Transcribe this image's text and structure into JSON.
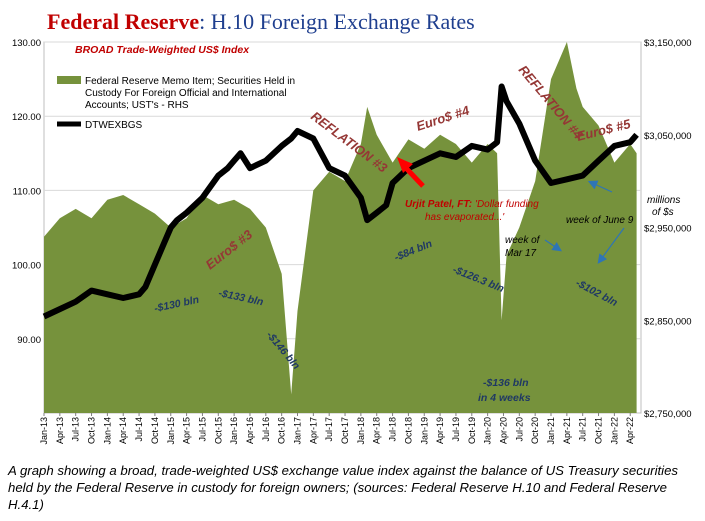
{
  "header": {
    "title_bold": "Federal Reserve",
    "title_rest": ": H.10 Foreign Exchange Rates",
    "title_color": "#c00000",
    "title_rest_color": "#1f3f8f"
  },
  "chart_data": {
    "type": "area",
    "subtitle": "BROAD Trade-Weighted US$ Index",
    "left_axis": {
      "ticks": [
        "130.00",
        "120.00",
        "110.00",
        "100.00",
        "90.00"
      ],
      "range": [
        80,
        130
      ]
    },
    "right_axis": {
      "unit_line1": "millions",
      "unit_line2": "of $s",
      "ticks": [
        "$3,150,000",
        "$3,050,000",
        "$2,950,000",
        "$2,850,000",
        "$2,750,000"
      ],
      "range": [
        2750000,
        3150000
      ]
    },
    "x_labels": [
      "Jan-13",
      "Apr-13",
      "Jul-13",
      "Oct-13",
      "Jan-14",
      "Apr-14",
      "Jul-14",
      "Oct-14",
      "Jan-15",
      "Apr-15",
      "Jul-15",
      "Oct-15",
      "Jan-16",
      "Apr-16",
      "Jul-16",
      "Oct-16",
      "Jan-17",
      "Apr-17",
      "Jul-17",
      "Oct-17",
      "Jan-18",
      "Apr-18",
      "Jul-18",
      "Oct-18",
      "Jan-19",
      "Apr-19",
      "Jul-19",
      "Oct-19",
      "Jan-20",
      "Apr-20",
      "Jul-20",
      "Oct-20",
      "Jan-21",
      "Apr-21",
      "Jul-21",
      "Oct-21",
      "Jan-22",
      "Apr-22"
    ],
    "legend": [
      {
        "label": "Federal Reserve Memo Item; Securities Held in Custody For Foreign Official and International Accounts; UST's - RHS",
        "color": "#76923c"
      },
      {
        "label": "DTWEXBGS",
        "color": "#000000"
      }
    ],
    "series": [
      {
        "name": "DTWEXBGS",
        "axis": "left",
        "x": [
          2013.0,
          2013.25,
          2013.5,
          2013.75,
          2014.0,
          2014.25,
          2014.5,
          2014.6,
          2014.75,
          2014.9,
          2015.0,
          2015.1,
          2015.25,
          2015.5,
          2015.75,
          2015.9,
          2016.0,
          2016.1,
          2016.25,
          2016.5,
          2016.75,
          2016.9,
          2017.0,
          2017.25,
          2017.5,
          2017.75,
          2018.0,
          2018.1,
          2018.25,
          2018.4,
          2018.5,
          2018.75,
          2019.0,
          2019.25,
          2019.5,
          2019.75,
          2020.0,
          2020.15,
          2020.22,
          2020.3,
          2020.5,
          2020.75,
          2021.0,
          2021.25,
          2021.5,
          2021.75,
          2022.0,
          2022.25,
          2022.35
        ],
        "values": [
          93,
          94,
          95,
          96.5,
          96,
          95.5,
          96,
          97,
          100,
          103,
          105,
          106,
          107,
          109,
          112,
          113,
          114,
          115,
          113,
          114,
          116,
          117,
          118,
          117,
          113,
          112,
          109,
          106,
          107,
          108,
          111,
          113,
          114,
          115,
          114.5,
          116,
          115.5,
          116.5,
          124,
          122,
          119,
          114,
          111,
          111.5,
          112,
          114,
          116,
          116.5,
          117.5
        ]
      },
      {
        "name": "Federal Reserve Memo Item; Securities Held in Custody For Foreign Official and International Accounts; UST's - RHS",
        "axis": "right",
        "x": [
          2013.0,
          2013.25,
          2013.5,
          2013.75,
          2014.0,
          2014.25,
          2014.5,
          2014.75,
          2015.0,
          2015.25,
          2015.5,
          2015.75,
          2016.0,
          2016.25,
          2016.5,
          2016.75,
          2016.9,
          2017.0,
          2017.25,
          2017.5,
          2017.75,
          2018.0,
          2018.1,
          2018.25,
          2018.5,
          2018.75,
          2019.0,
          2019.25,
          2019.5,
          2019.75,
          2020.0,
          2020.15,
          2020.22,
          2020.3,
          2020.5,
          2020.75,
          2021.0,
          2021.25,
          2021.4,
          2021.5,
          2021.75,
          2022.0,
          2022.25,
          2022.35
        ],
        "values": [
          2940000,
          2960000,
          2970000,
          2960000,
          2980000,
          2985000,
          2975000,
          2965000,
          2950000,
          2960000,
          2985000,
          2975000,
          2980000,
          2970000,
          2950000,
          2900000,
          2770000,
          2860000,
          2990000,
          3010000,
          3000000,
          3040000,
          3080000,
          3050000,
          3020000,
          3045000,
          3035000,
          3050000,
          3040000,
          3020000,
          3040000,
          3030000,
          2850000,
          2920000,
          2950000,
          3000000,
          3110000,
          3150000,
          3100000,
          3080000,
          3060000,
          3020000,
          3040000,
          3030000
        ]
      }
    ],
    "annotations": {
      "reflation3": "REFLATION #3",
      "reflation4": "REFLATION #4",
      "euro3": "Euro$ #3",
      "euro4": "Euro$ #4",
      "euro5": "Euro$ #5",
      "b130": "-$130 bln",
      "b133": "-$133 bln",
      "b146": "-$146 bln",
      "b84": "-$84 bln",
      "b126": "-$126.3 bln",
      "b102": "-$102 bln",
      "b136a": "-$136 bln",
      "b136b": "in 4 weeks",
      "patel1": "Urjit Patel, FT:",
      "patel2": "'Dollar funding",
      "patel3": "has evaporated...'",
      "mar17a": "week of",
      "mar17b": "Mar 17",
      "june9": "week of June 9"
    }
  },
  "caption": "A graph showing a broad, trade-weighted US$ exchange value index against the balance of US Treasury securities held by the Federal Reserve in custody for foreign owners; (sources: Federal Reserve H.10 and Federal Reserve H.4.1)"
}
